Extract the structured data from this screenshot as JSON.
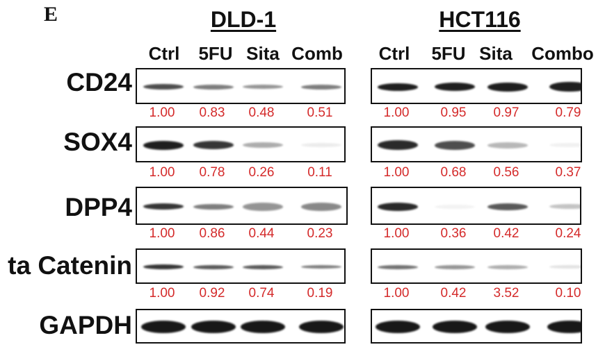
{
  "figure": {
    "panel_letter": "E",
    "cell_lines": [
      {
        "name": "DLD-1",
        "lanes": [
          "Ctrl",
          "5FU",
          "Sita",
          "Comb"
        ]
      },
      {
        "name": "HCT116",
        "lanes": [
          "Ctrl",
          "5FU",
          "Sita",
          "Combo"
        ]
      }
    ],
    "rows": [
      {
        "label": "CD24",
        "values": [
          [
            "1.00",
            "0.83",
            "0.48",
            "0.51"
          ],
          [
            "1.00",
            "0.95",
            "0.97",
            "0.79"
          ]
        ]
      },
      {
        "label": "SOX4",
        "values": [
          [
            "1.00",
            "0.78",
            "0.26",
            "0.11"
          ],
          [
            "1.00",
            "0.68",
            "0.56",
            "0.37"
          ]
        ]
      },
      {
        "label": "DPP4",
        "values": [
          [
            "1.00",
            "0.86",
            "0.44",
            "0.23"
          ],
          [
            "1.00",
            "0.36",
            "0.42",
            "0.24"
          ]
        ]
      },
      {
        "label": "ta Catenin",
        "values": [
          [
            "1.00",
            "0.92",
            "0.74",
            "0.19"
          ],
          [
            "1.00",
            "0.42",
            "3.52",
            "0.10"
          ]
        ]
      },
      {
        "label": "GAPDH",
        "values": [
          [],
          []
        ]
      }
    ],
    "colors": {
      "quant_text": "#d42a2a",
      "band": "#141414"
    }
  }
}
